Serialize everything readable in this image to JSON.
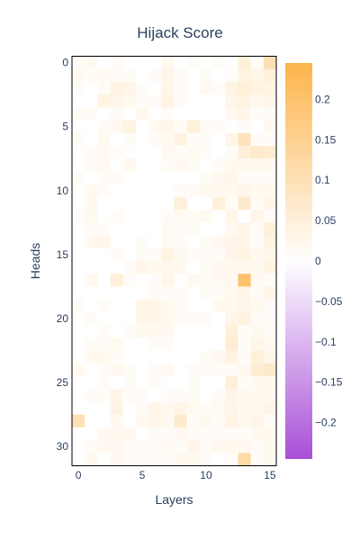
{
  "chart_data": {
    "type": "heatmap",
    "title": "Hijack Score",
    "xlabel": "Layers",
    "ylabel": "Heads",
    "x_ticks": [
      "0",
      "5",
      "10",
      "15"
    ],
    "y_ticks": [
      "0",
      "5",
      "10",
      "15",
      "20",
      "25",
      "30"
    ],
    "colorbar_ticks": [
      "0.2",
      "0.15",
      "0.1",
      "0.05",
      "0",
      "−0.05",
      "−0.1",
      "−0.15",
      "−0.2"
    ],
    "x_range": [
      0,
      15
    ],
    "y_range": [
      0,
      31
    ],
    "zlim": [
      -0.245,
      0.245
    ],
    "colorscale": {
      "negative": "#a84fd8",
      "zero": "#ffffff",
      "positive": "#fdb44b"
    },
    "z": [
      [
        0.01,
        0.02,
        0.0,
        0.01,
        0.0,
        0.0,
        0.0,
        0.02,
        0.0,
        0.01,
        0.0,
        0.01,
        0.0,
        0.05,
        0.01,
        0.1
      ],
      [
        0.02,
        0.01,
        0.02,
        0.01,
        0.01,
        0.0,
        0.01,
        0.03,
        0.01,
        0.0,
        0.01,
        0.0,
        0.01,
        0.04,
        0.03,
        0.05
      ],
      [
        0.01,
        0.0,
        0.01,
        0.04,
        0.03,
        0.01,
        0.0,
        0.03,
        0.01,
        0.0,
        0.02,
        0.01,
        0.04,
        0.05,
        0.04,
        0.04
      ],
      [
        0.0,
        0.0,
        0.04,
        0.03,
        0.02,
        0.01,
        0.01,
        0.04,
        0.01,
        0.0,
        0.0,
        0.0,
        0.03,
        0.04,
        0.02,
        0.03
      ],
      [
        0.01,
        0.01,
        0.0,
        0.01,
        0.0,
        0.02,
        0.0,
        0.01,
        0.0,
        0.0,
        0.0,
        0.0,
        0.02,
        0.03,
        0.01,
        0.01
      ],
      [
        0.0,
        0.0,
        0.01,
        0.02,
        0.04,
        0.0,
        0.02,
        0.03,
        0.01,
        0.05,
        0.01,
        0.01,
        0.0,
        0.01,
        0.0,
        0.02
      ],
      [
        0.01,
        0.0,
        0.02,
        0.0,
        0.01,
        0.0,
        0.01,
        0.02,
        0.04,
        0.01,
        0.01,
        0.0,
        0.03,
        0.09,
        0.01,
        0.01
      ],
      [
        0.0,
        0.01,
        0.02,
        0.01,
        0.0,
        0.0,
        0.0,
        0.02,
        0.01,
        0.02,
        0.01,
        0.0,
        0.01,
        0.05,
        0.07,
        0.06
      ],
      [
        0.0,
        0.01,
        0.02,
        0.0,
        0.02,
        0.0,
        0.0,
        0.01,
        0.02,
        0.01,
        0.0,
        0.01,
        0.02,
        0.02,
        0.02,
        0.02
      ],
      [
        0.01,
        0.0,
        0.01,
        0.01,
        0.0,
        0.0,
        0.0,
        0.0,
        0.0,
        0.0,
        0.01,
        0.02,
        0.03,
        0.01,
        0.01,
        0.01
      ],
      [
        0.0,
        0.02,
        0.01,
        0.0,
        0.0,
        0.0,
        0.0,
        0.0,
        0.01,
        0.01,
        0.02,
        0.02,
        0.02,
        0.03,
        0.02,
        0.02
      ],
      [
        0.0,
        0.02,
        0.0,
        0.0,
        0.0,
        0.0,
        0.0,
        0.0,
        0.05,
        0.0,
        0.0,
        0.05,
        0.01,
        0.07,
        0.01,
        0.03
      ],
      [
        0.01,
        0.02,
        0.0,
        0.01,
        0.0,
        0.0,
        0.0,
        0.01,
        0.02,
        0.01,
        0.02,
        0.0,
        0.03,
        0.0,
        0.03,
        0.01
      ],
      [
        0.0,
        0.01,
        0.01,
        0.0,
        0.0,
        0.0,
        0.0,
        0.02,
        0.01,
        0.01,
        0.0,
        0.0,
        0.02,
        0.03,
        0.01,
        0.05
      ],
      [
        0.0,
        0.02,
        0.03,
        0.0,
        0.0,
        0.01,
        0.0,
        0.02,
        0.01,
        0.0,
        0.01,
        0.02,
        0.03,
        0.03,
        0.01,
        0.04
      ],
      [
        0.0,
        0.0,
        0.0,
        0.01,
        0.0,
        0.01,
        0.01,
        0.04,
        0.02,
        0.01,
        0.01,
        0.01,
        0.03,
        0.04,
        0.02,
        0.03
      ],
      [
        0.0,
        0.0,
        0.0,
        0.0,
        0.01,
        0.03,
        0.02,
        0.02,
        0.02,
        0.0,
        0.01,
        0.02,
        0.02,
        0.02,
        0.02,
        0.04
      ],
      [
        0.0,
        0.02,
        0.0,
        0.05,
        0.01,
        0.0,
        0.01,
        0.03,
        0.0,
        0.02,
        0.01,
        0.02,
        0.02,
        0.2,
        0.02,
        0.01
      ],
      [
        0.0,
        0.0,
        0.0,
        0.0,
        0.0,
        0.0,
        0.01,
        0.01,
        0.01,
        0.0,
        0.01,
        0.01,
        0.02,
        0.03,
        0.01,
        0.03
      ],
      [
        0.01,
        0.0,
        0.01,
        0.0,
        0.0,
        0.03,
        0.03,
        0.02,
        0.01,
        0.0,
        0.0,
        0.02,
        0.02,
        0.03,
        0.02,
        0.01
      ],
      [
        0.0,
        0.01,
        0.0,
        0.0,
        0.0,
        0.03,
        0.03,
        0.02,
        0.01,
        0.01,
        0.01,
        0.0,
        0.03,
        0.04,
        0.01,
        0.01
      ],
      [
        0.0,
        0.0,
        0.01,
        0.0,
        0.01,
        0.02,
        0.02,
        0.02,
        0.0,
        0.0,
        0.0,
        0.0,
        0.05,
        0.01,
        0.02,
        0.01
      ],
      [
        0.0,
        0.01,
        0.01,
        0.02,
        0.0,
        0.0,
        0.01,
        0.01,
        0.0,
        0.0,
        0.0,
        0.0,
        0.06,
        0.01,
        0.03,
        0.02
      ],
      [
        0.0,
        0.02,
        0.02,
        0.01,
        0.0,
        0.0,
        0.0,
        0.0,
        0.0,
        0.0,
        0.01,
        0.02,
        0.04,
        0.01,
        0.05,
        0.03
      ],
      [
        0.02,
        0.0,
        0.01,
        0.02,
        0.01,
        0.0,
        0.01,
        0.02,
        0.0,
        0.01,
        0.01,
        0.01,
        0.01,
        0.02,
        0.06,
        0.07
      ],
      [
        0.0,
        0.0,
        0.01,
        0.0,
        0.01,
        0.0,
        0.01,
        0.0,
        0.0,
        0.01,
        0.0,
        0.0,
        0.05,
        0.01,
        0.02,
        0.02
      ],
      [
        0.0,
        0.01,
        0.01,
        0.03,
        0.01,
        0.01,
        0.0,
        0.01,
        0.01,
        0.01,
        0.0,
        0.01,
        0.03,
        0.02,
        0.02,
        0.02
      ],
      [
        0.0,
        0.0,
        0.0,
        0.04,
        0.0,
        0.01,
        0.03,
        0.02,
        0.03,
        0.02,
        0.01,
        0.02,
        0.03,
        0.02,
        0.02,
        0.03
      ],
      [
        0.1,
        0.0,
        0.0,
        0.02,
        0.0,
        0.02,
        0.03,
        0.02,
        0.07,
        0.01,
        0.02,
        0.01,
        0.04,
        0.02,
        0.03,
        0.01
      ],
      [
        0.0,
        0.0,
        0.02,
        0.02,
        0.02,
        0.0,
        0.01,
        0.01,
        0.02,
        0.01,
        0.01,
        0.01,
        0.01,
        0.01,
        0.02,
        0.02
      ],
      [
        0.0,
        0.01,
        0.02,
        0.02,
        0.01,
        0.01,
        0.01,
        0.02,
        0.01,
        0.03,
        0.01,
        0.02,
        0.02,
        0.02,
        0.01,
        0.02
      ],
      [
        0.0,
        0.02,
        0.0,
        0.02,
        0.01,
        0.01,
        0.01,
        0.01,
        0.02,
        0.02,
        0.01,
        0.0,
        0.01,
        0.12,
        0.01,
        0.02
      ]
    ]
  }
}
